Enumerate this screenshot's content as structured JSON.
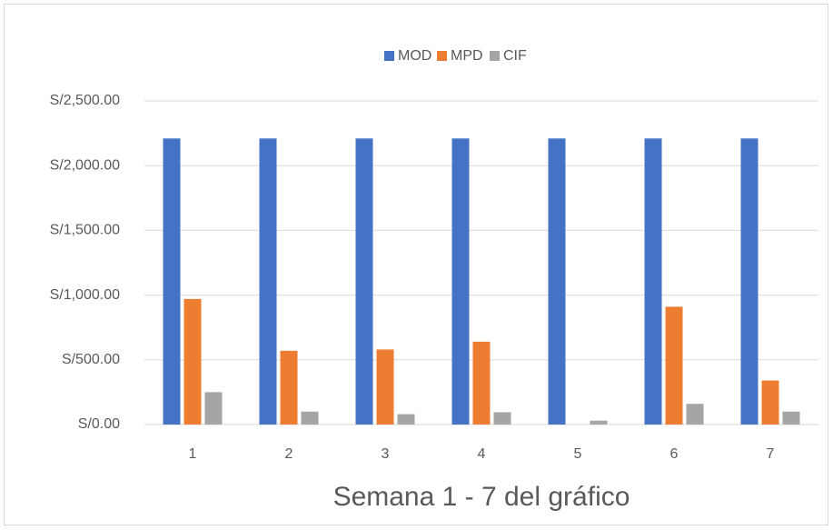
{
  "chart_data": {
    "type": "bar",
    "x_label": "Semana 1 - 7 del gráfico",
    "categories": [
      "1",
      "2",
      "3",
      "4",
      "5",
      "6",
      "7"
    ],
    "series": [
      {
        "name": "MOD",
        "color": "#4472c4",
        "values": [
          2210,
          2210,
          2210,
          2210,
          2210,
          2210,
          2210
        ]
      },
      {
        "name": "MPD",
        "color": "#ed7d31",
        "values": [
          970,
          570,
          580,
          640,
          0,
          910,
          340
        ]
      },
      {
        "name": "CIF",
        "color": "#a5a5a5",
        "values": [
          250,
          100,
          80,
          95,
          30,
          160,
          100
        ]
      }
    ],
    "ylim": [
      0,
      2500
    ],
    "yticks": [
      {
        "value": 0,
        "label": "S/0.00"
      },
      {
        "value": 500,
        "label": "S/500.00"
      },
      {
        "value": 1000,
        "label": "S/1,000.00"
      },
      {
        "value": 1500,
        "label": "S/1,500.00"
      },
      {
        "value": 2000,
        "label": "S/2,000.00"
      },
      {
        "value": 2500,
        "label": "S/2,500.00"
      }
    ],
    "grid": true,
    "legend": "top"
  }
}
